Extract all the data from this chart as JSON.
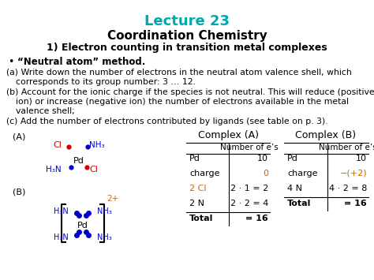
{
  "title": "Lecture 23",
  "subtitle": "Coordination Chemistry",
  "subtitle2": "1) Electron counting in transition metal complexes",
  "bullet": "“Neutral atom” method.",
  "title_color": "#00AAAA",
  "black": "#000000",
  "red": "#CC0000",
  "blue": "#0000CC",
  "orange": "#CC6600",
  "bg_color": "#FFFFFF",
  "figw": 4.74,
  "figh": 3.55,
  "dpi": 100
}
